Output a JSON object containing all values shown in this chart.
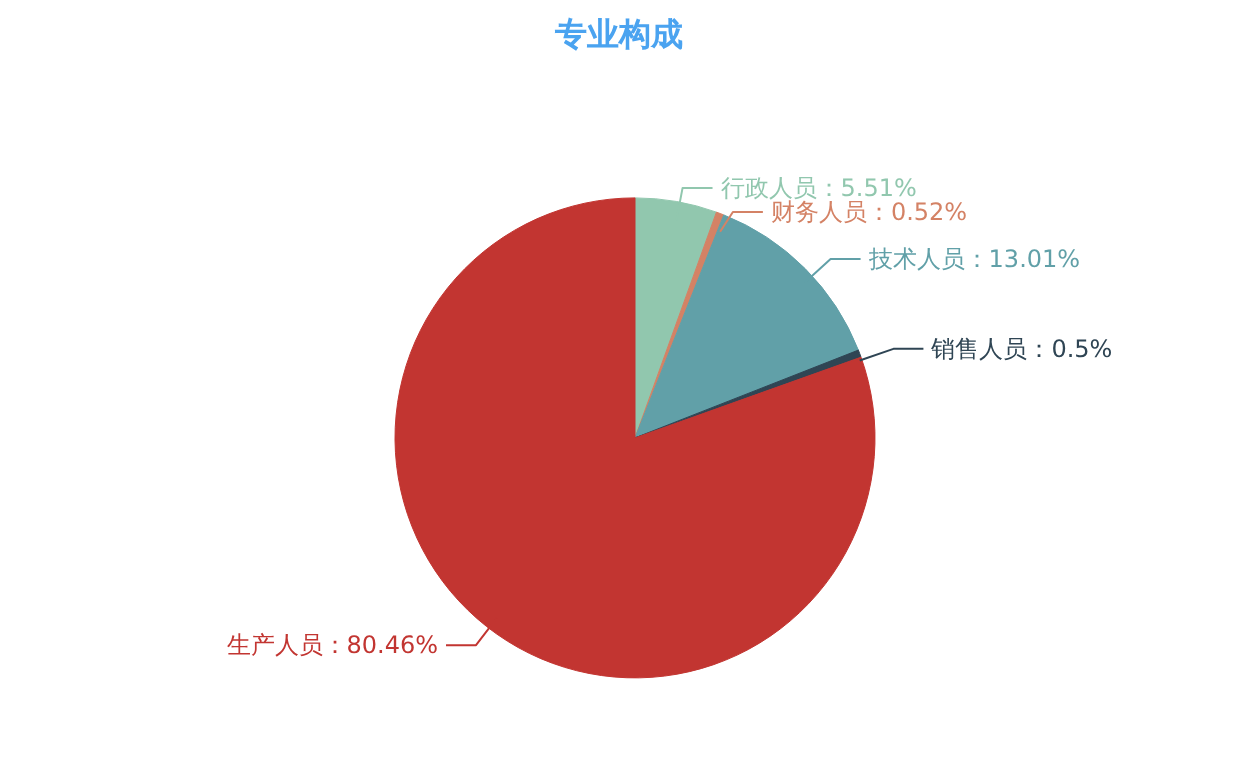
{
  "chart_data": {
    "type": "pie",
    "title": "专业构成",
    "categories": [
      "行政人员",
      "财务人员",
      "技术人员",
      "销售人员",
      "生产人员"
    ],
    "values": [
      5.51,
      0.52,
      13.01,
      0.5,
      80.46
    ],
    "colors": [
      "#91c7ae",
      "#d48265",
      "#61a0a8",
      "#2f4554",
      "#c23531"
    ],
    "value_labels": [
      "：5.51%",
      "：0.52%",
      "：13.01%",
      "：0.5%",
      "：80.46%"
    ]
  }
}
